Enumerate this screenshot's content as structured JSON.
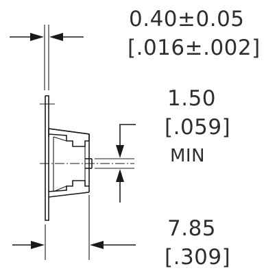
{
  "dimensions": {
    "thickness": {
      "metric": "0.40±0.05",
      "imperial": "[.016±.002]"
    },
    "clearance": {
      "metric": "1.50",
      "imperial": "[.059]",
      "note": "MIN"
    },
    "length": {
      "metric": "7.85",
      "imperial": "[.309]"
    }
  },
  "colors": {
    "line": "#1a1a1a",
    "text": "#2e2e2e",
    "background": "#ffffff"
  }
}
